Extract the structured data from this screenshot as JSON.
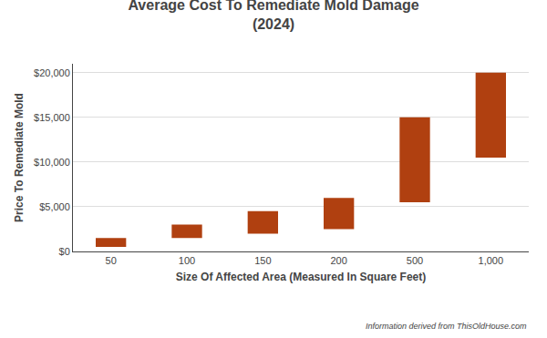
{
  "chart_data": {
    "type": "bar",
    "title": "Average Cost To Remediate Mold Damage\n(2024)",
    "xlabel": "Size Of Affected Area (Measured In Square Feet)",
    "ylabel": "Price To Remediate Mold",
    "footnote": "Information derived from ThisOldHouse.com",
    "categories": [
      "50",
      "100",
      "150",
      "200",
      "500",
      "1,000"
    ],
    "low": [
      500,
      1500,
      2000,
      2500,
      5500,
      10500
    ],
    "high": [
      1500,
      3000,
      4500,
      6000,
      15000,
      20000
    ],
    "color": "#b04010",
    "ylim": [
      0,
      21000
    ],
    "yticks": [
      {
        "value": 0,
        "label": "$0"
      },
      {
        "value": 5000,
        "label": "$5,000"
      },
      {
        "value": 10000,
        "label": "$10,000"
      },
      {
        "value": 15000,
        "label": "$15,000"
      },
      {
        "value": 20000,
        "label": "$20,000"
      }
    ],
    "grid": true
  }
}
